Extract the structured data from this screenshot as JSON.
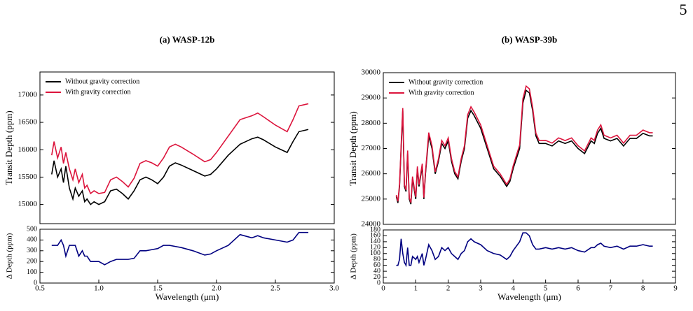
{
  "page_number": "5",
  "chart_data": [
    {
      "type": "line",
      "title": "(a) WASP-12b",
      "ylabel": "Transit Depth (ppm)",
      "legend": "upper left",
      "x": [
        0.6,
        0.62,
        0.65,
        0.68,
        0.7,
        0.72,
        0.75,
        0.78,
        0.8,
        0.83,
        0.86,
        0.88,
        0.9,
        0.93,
        0.96,
        1.0,
        1.05,
        1.1,
        1.15,
        1.2,
        1.25,
        1.3,
        1.35,
        1.4,
        1.45,
        1.5,
        1.55,
        1.6,
        1.65,
        1.7,
        1.8,
        1.9,
        1.95,
        2.0,
        2.1,
        2.2,
        2.3,
        2.35,
        2.4,
        2.5,
        2.6,
        2.65,
        2.7,
        2.78
      ],
      "series": [
        {
          "name": "Without gravity correction",
          "color": "#000000",
          "values": [
            15550,
            15800,
            15500,
            15650,
            15400,
            15700,
            15300,
            15100,
            15300,
            15150,
            15250,
            15050,
            15100,
            15000,
            15050,
            15000,
            15050,
            15250,
            15280,
            15200,
            15100,
            15250,
            15450,
            15500,
            15450,
            15380,
            15500,
            15700,
            15760,
            15720,
            15620,
            15520,
            15550,
            15650,
            15900,
            16100,
            16200,
            16230,
            16180,
            16050,
            15950,
            16150,
            16330,
            16370
          ]
        },
        {
          "name": "With gravity correction",
          "color": "#dc143c",
          "values": [
            15900,
            16150,
            15850,
            16050,
            15750,
            15950,
            15650,
            15450,
            15650,
            15400,
            15550,
            15300,
            15350,
            15200,
            15250,
            15200,
            15220,
            15450,
            15500,
            15420,
            15320,
            15480,
            15750,
            15800,
            15760,
            15700,
            15850,
            16050,
            16100,
            16050,
            15920,
            15780,
            15820,
            15950,
            16250,
            16550,
            16620,
            16670,
            16600,
            16450,
            16330,
            16550,
            16800,
            16840
          ]
        }
      ],
      "xlim": [
        0.5,
        3.0
      ],
      "ylim": [
        14650,
        17420
      ],
      "yticks": [
        15000,
        15500,
        16000,
        16500,
        17000
      ]
    },
    {
      "type": "line",
      "ylabel": "Δ Depth (ppm)",
      "xlabel": "Wavelength (μm)",
      "x": [
        0.6,
        0.62,
        0.65,
        0.68,
        0.7,
        0.72,
        0.75,
        0.78,
        0.8,
        0.83,
        0.86,
        0.88,
        0.9,
        0.93,
        0.96,
        1.0,
        1.05,
        1.1,
        1.15,
        1.2,
        1.25,
        1.3,
        1.35,
        1.4,
        1.45,
        1.5,
        1.55,
        1.6,
        1.65,
        1.7,
        1.8,
        1.9,
        1.95,
        2.0,
        2.1,
        2.2,
        2.3,
        2.35,
        2.4,
        2.5,
        2.6,
        2.65,
        2.7,
        2.78
      ],
      "series": [
        {
          "color": "#000080",
          "values": [
            350,
            350,
            350,
            400,
            350,
            250,
            350,
            350,
            350,
            250,
            300,
            250,
            250,
            200,
            200,
            200,
            170,
            200,
            220,
            220,
            220,
            230,
            300,
            300,
            310,
            320,
            350,
            350,
            340,
            330,
            300,
            260,
            270,
            300,
            350,
            450,
            420,
            440,
            420,
            400,
            380,
            400,
            470,
            470
          ]
        }
      ],
      "xlim": [
        0.5,
        3.0
      ],
      "ylim": [
        0,
        500
      ],
      "xticks": [
        0.5,
        {
          "value": 1.0,
          "label": "1.0"
        },
        1.5,
        {
          "value": 2.0,
          "label": "2.0"
        },
        2.5,
        {
          "value": 3.0,
          "label": "3.0"
        }
      ],
      "yticks": [
        0,
        100,
        200,
        300,
        400,
        500
      ]
    },
    {
      "type": "line",
      "title": "(b) WASP-39b",
      "ylabel": "Transit Depth (ppm)",
      "legend": "upper left",
      "x": [
        0.4,
        0.45,
        0.5,
        0.55,
        0.6,
        0.65,
        0.7,
        0.75,
        0.8,
        0.85,
        0.9,
        1.0,
        1.05,
        1.1,
        1.2,
        1.25,
        1.3,
        1.4,
        1.5,
        1.6,
        1.7,
        1.8,
        1.9,
        2.0,
        2.1,
        2.2,
        2.3,
        2.4,
        2.5,
        2.6,
        2.7,
        2.8,
        3.0,
        3.2,
        3.4,
        3.6,
        3.8,
        3.9,
        4.0,
        4.2,
        4.3,
        4.4,
        4.5,
        4.6,
        4.7,
        4.8,
        5.0,
        5.2,
        5.4,
        5.6,
        5.8,
        6.0,
        6.2,
        6.4,
        6.5,
        6.6,
        6.7,
        6.8,
        7.0,
        7.2,
        7.4,
        7.6,
        7.8,
        8.0,
        8.2,
        8.3
      ],
      "series": [
        {
          "name": "Without gravity correction",
          "color": "#000000",
          "values": [
            25100,
            24850,
            25500,
            27000,
            28500,
            25500,
            25300,
            26800,
            25000,
            24800,
            25800,
            25000,
            26200,
            25500,
            26300,
            25000,
            26000,
            27500,
            27000,
            26000,
            26500,
            27200,
            27000,
            27300,
            26500,
            26000,
            25800,
            26500,
            27000,
            28200,
            28500,
            28300,
            27800,
            27000,
            26200,
            25900,
            25500,
            25700,
            26200,
            27000,
            28800,
            29300,
            29200,
            28500,
            27500,
            27200,
            27200,
            27100,
            27300,
            27200,
            27300,
            27000,
            26800,
            27300,
            27200,
            27600,
            27800,
            27400,
            27300,
            27400,
            27100,
            27400,
            27400,
            27600,
            27500,
            27500
          ]
        },
        {
          "name": "With gravity correction",
          "color": "#dc143c",
          "values": [
            25160,
            24910,
            25580,
            27150,
            28600,
            25570,
            25360,
            26920,
            25060,
            24860,
            25890,
            25080,
            26290,
            25570,
            26400,
            25060,
            26080,
            27630,
            27110,
            26080,
            26590,
            27320,
            27110,
            27420,
            26600,
            26090,
            25880,
            26600,
            27110,
            28340,
            28650,
            28440,
            27930,
            27110,
            26300,
            25995,
            25580,
            25790,
            26310,
            27140,
            28970,
            29470,
            29360,
            28630,
            27615,
            27315,
            27320,
            27215,
            27420,
            27315,
            27420,
            27110,
            26905,
            27420,
            27320,
            27730,
            27935,
            27525,
            27420,
            27525,
            27215,
            27525,
            27525,
            27730,
            27625,
            27625
          ]
        }
      ],
      "xlim": [
        0,
        9
      ],
      "ylim": [
        24000,
        30000
      ],
      "yticks": [
        24000,
        25000,
        26000,
        27000,
        28000,
        29000,
        30000
      ]
    },
    {
      "type": "line",
      "ylabel": "Δ Depth (ppm)",
      "xlabel": "Wavelength (μm)",
      "x": [
        0.4,
        0.45,
        0.5,
        0.55,
        0.6,
        0.65,
        0.7,
        0.75,
        0.8,
        0.85,
        0.9,
        1.0,
        1.05,
        1.1,
        1.2,
        1.25,
        1.3,
        1.4,
        1.5,
        1.6,
        1.7,
        1.8,
        1.9,
        2.0,
        2.1,
        2.2,
        2.3,
        2.4,
        2.5,
        2.6,
        2.7,
        2.8,
        3.0,
        3.2,
        3.4,
        3.6,
        3.8,
        3.9,
        4.0,
        4.2,
        4.3,
        4.4,
        4.5,
        4.6,
        4.7,
        4.8,
        5.0,
        5.2,
        5.4,
        5.6,
        5.8,
        6.0,
        6.2,
        6.4,
        6.5,
        6.6,
        6.7,
        6.8,
        7.0,
        7.2,
        7.4,
        7.6,
        7.8,
        8.0,
        8.2,
        8.3
      ],
      "series": [
        {
          "color": "#000080",
          "values": [
            60,
            60,
            80,
            150,
            100,
            70,
            60,
            120,
            60,
            60,
            90,
            80,
            90,
            70,
            100,
            60,
            80,
            130,
            110,
            80,
            90,
            120,
            110,
            120,
            100,
            90,
            80,
            100,
            110,
            140,
            150,
            140,
            130,
            110,
            100,
            95,
            80,
            90,
            110,
            140,
            170,
            170,
            160,
            130,
            115,
            115,
            120,
            115,
            120,
            115,
            120,
            110,
            105,
            120,
            120,
            130,
            135,
            125,
            120,
            125,
            115,
            125,
            125,
            130,
            125,
            125
          ]
        }
      ],
      "xlim": [
        0,
        9
      ],
      "ylim": [
        0,
        180
      ],
      "xticks": [
        0,
        1,
        2,
        3,
        4,
        5,
        6,
        7,
        8,
        9
      ],
      "yticks": [
        0,
        20,
        40,
        60,
        80,
        100,
        120,
        140,
        160,
        180
      ]
    }
  ]
}
